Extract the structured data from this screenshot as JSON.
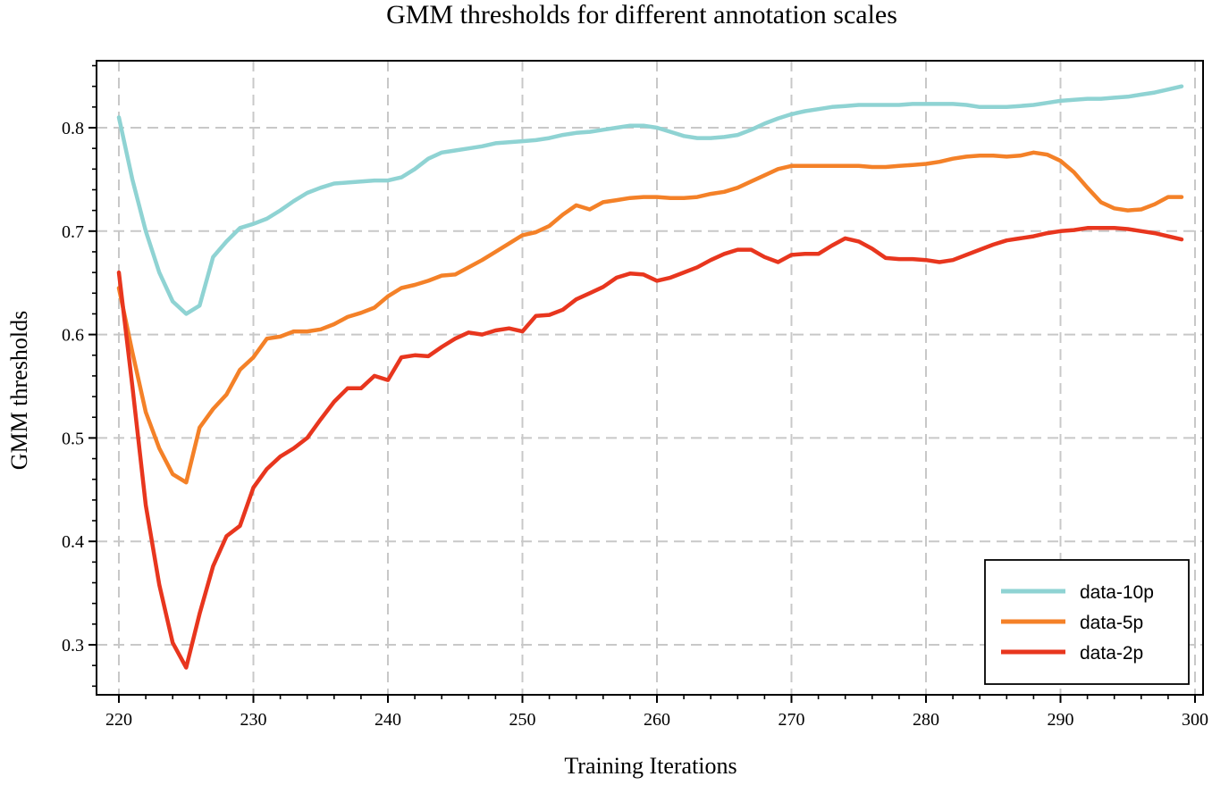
{
  "chart_data": {
    "type": "line",
    "title": "GMM thresholds for different annotation scales",
    "xlabel": "Training Iterations",
    "ylabel": "GMM thresholds",
    "xlim": [
      219,
      301
    ],
    "ylim": [
      0.245,
      0.865
    ],
    "xticks": [
      220,
      230,
      240,
      250,
      260,
      270,
      280,
      290,
      300
    ],
    "xtick_labels": [
      "220",
      "230",
      "240",
      "250",
      "260",
      "270",
      "280",
      "290",
      "300"
    ],
    "yticks": [
      0.3,
      0.4,
      0.5,
      0.6,
      0.7,
      0.8
    ],
    "ytick_labels": [
      "0.3",
      "0.4",
      "0.5",
      "0.6",
      "0.7",
      "0.8"
    ],
    "grid": true,
    "legend_position": "bottom-right",
    "x": [
      220,
      221,
      222,
      223,
      224,
      225,
      226,
      227,
      228,
      229,
      230,
      231,
      232,
      233,
      234,
      235,
      236,
      237,
      238,
      239,
      240,
      241,
      242,
      243,
      244,
      245,
      246,
      247,
      248,
      249,
      250,
      251,
      252,
      253,
      254,
      255,
      256,
      257,
      258,
      259,
      260,
      261,
      262,
      263,
      264,
      265,
      266,
      267,
      268,
      269,
      270,
      271,
      272,
      273,
      274,
      275,
      276,
      277,
      278,
      279,
      280,
      281,
      282,
      283,
      284,
      285,
      286,
      287,
      288,
      289,
      290,
      291,
      292,
      293,
      294,
      295,
      296,
      297,
      298,
      299
    ],
    "series": [
      {
        "name": "data-10p",
        "color": "#8fd3d3",
        "values": [
          0.81,
          0.75,
          0.7,
          0.66,
          0.632,
          0.62,
          0.628,
          0.675,
          0.69,
          0.703,
          0.707,
          0.712,
          0.72,
          0.729,
          0.737,
          0.742,
          0.746,
          0.747,
          0.748,
          0.749,
          0.749,
          0.752,
          0.76,
          0.77,
          0.776,
          0.778,
          0.78,
          0.782,
          0.785,
          0.786,
          0.787,
          0.788,
          0.79,
          0.793,
          0.795,
          0.796,
          0.798,
          0.8,
          0.802,
          0.802,
          0.8,
          0.796,
          0.792,
          0.79,
          0.79,
          0.791,
          0.793,
          0.798,
          0.804,
          0.809,
          0.813,
          0.816,
          0.818,
          0.82,
          0.821,
          0.822,
          0.822,
          0.822,
          0.822,
          0.823,
          0.823,
          0.823,
          0.823,
          0.822,
          0.82,
          0.82,
          0.82,
          0.821,
          0.822,
          0.824,
          0.826,
          0.827,
          0.828,
          0.828,
          0.829,
          0.83,
          0.832,
          0.834,
          0.837,
          0.84
        ]
      },
      {
        "name": "data-5p",
        "color": "#f48128",
        "values": [
          0.645,
          0.583,
          0.525,
          0.49,
          0.465,
          0.457,
          0.51,
          0.528,
          0.542,
          0.566,
          0.578,
          0.596,
          0.598,
          0.603,
          0.603,
          0.605,
          0.61,
          0.617,
          0.621,
          0.626,
          0.637,
          0.645,
          0.648,
          0.652,
          0.657,
          0.658,
          0.665,
          0.672,
          0.68,
          0.688,
          0.696,
          0.699,
          0.705,
          0.716,
          0.725,
          0.721,
          0.728,
          0.73,
          0.732,
          0.733,
          0.733,
          0.732,
          0.732,
          0.733,
          0.736,
          0.738,
          0.742,
          0.748,
          0.754,
          0.76,
          0.763,
          0.763,
          0.763,
          0.763,
          0.763,
          0.763,
          0.762,
          0.762,
          0.763,
          0.764,
          0.765,
          0.767,
          0.77,
          0.772,
          0.773,
          0.773,
          0.772,
          0.773,
          0.776,
          0.774,
          0.768,
          0.757,
          0.742,
          0.728,
          0.722,
          0.72,
          0.721,
          0.726,
          0.733,
          0.733
        ]
      },
      {
        "name": "data-2p",
        "color": "#e8361e",
        "values": [
          0.66,
          0.55,
          0.435,
          0.358,
          0.302,
          0.278,
          0.33,
          0.376,
          0.405,
          0.415,
          0.452,
          0.47,
          0.482,
          0.49,
          0.5,
          0.518,
          0.535,
          0.548,
          0.548,
          0.56,
          0.556,
          0.578,
          0.58,
          0.579,
          0.588,
          0.596,
          0.602,
          0.6,
          0.604,
          0.606,
          0.603,
          0.618,
          0.619,
          0.624,
          0.634,
          0.64,
          0.646,
          0.655,
          0.659,
          0.658,
          0.652,
          0.655,
          0.66,
          0.665,
          0.672,
          0.678,
          0.682,
          0.682,
          0.675,
          0.67,
          0.677,
          0.678,
          0.678,
          0.686,
          0.693,
          0.69,
          0.683,
          0.674,
          0.673,
          0.673,
          0.672,
          0.67,
          0.672,
          0.677,
          0.682,
          0.687,
          0.691,
          0.693,
          0.695,
          0.698,
          0.7,
          0.701,
          0.703,
          0.703,
          0.703,
          0.702,
          0.7,
          0.698,
          0.695,
          0.692
        ]
      }
    ]
  }
}
